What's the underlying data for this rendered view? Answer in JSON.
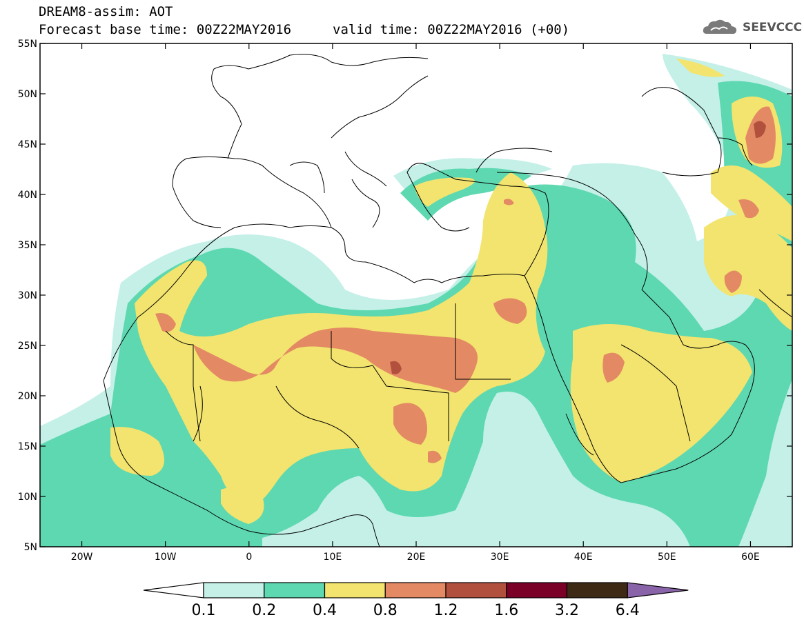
{
  "header": {
    "title": "DREAM8-assim: AOT",
    "base_time": "Forecast base time: 00Z22MAY2016",
    "valid_time": "valid time: 00Z22MAY2016 (+00)"
  },
  "logo": {
    "text": "SEEVCCC",
    "icon": "cloud-icon"
  },
  "map": {
    "lon_range": [
      -25,
      65
    ],
    "lat_range": [
      5,
      55
    ],
    "lon_ticks": [
      {
        "value": -20,
        "label": "20W"
      },
      {
        "value": -10,
        "label": "10W"
      },
      {
        "value": 0,
        "label": "0"
      },
      {
        "value": 10,
        "label": "10E"
      },
      {
        "value": 20,
        "label": "20E"
      },
      {
        "value": 30,
        "label": "30E"
      },
      {
        "value": 40,
        "label": "40E"
      },
      {
        "value": 50,
        "label": "50E"
      },
      {
        "value": 60,
        "label": "60E"
      }
    ],
    "lat_ticks": [
      {
        "value": 5,
        "label": "5N"
      },
      {
        "value": 10,
        "label": "10N"
      },
      {
        "value": 15,
        "label": "15N"
      },
      {
        "value": 20,
        "label": "20N"
      },
      {
        "value": 25,
        "label": "25N"
      },
      {
        "value": 30,
        "label": "30N"
      },
      {
        "value": 35,
        "label": "35N"
      },
      {
        "value": 40,
        "label": "40N"
      },
      {
        "value": 45,
        "label": "45N"
      },
      {
        "value": 50,
        "label": "50N"
      },
      {
        "value": 55,
        "label": "55N"
      }
    ]
  },
  "legend": {
    "levels": [
      "0.1",
      "0.2",
      "0.4",
      "0.8",
      "1.2",
      "1.6",
      "3.2",
      "6.4"
    ],
    "colors": [
      "#ffffff",
      "#c4f0e8",
      "#5ed8b0",
      "#f2e46e",
      "#e38a64",
      "#b2503e",
      "#7a0028",
      "#3e2a14",
      "#8a64a8"
    ]
  }
}
